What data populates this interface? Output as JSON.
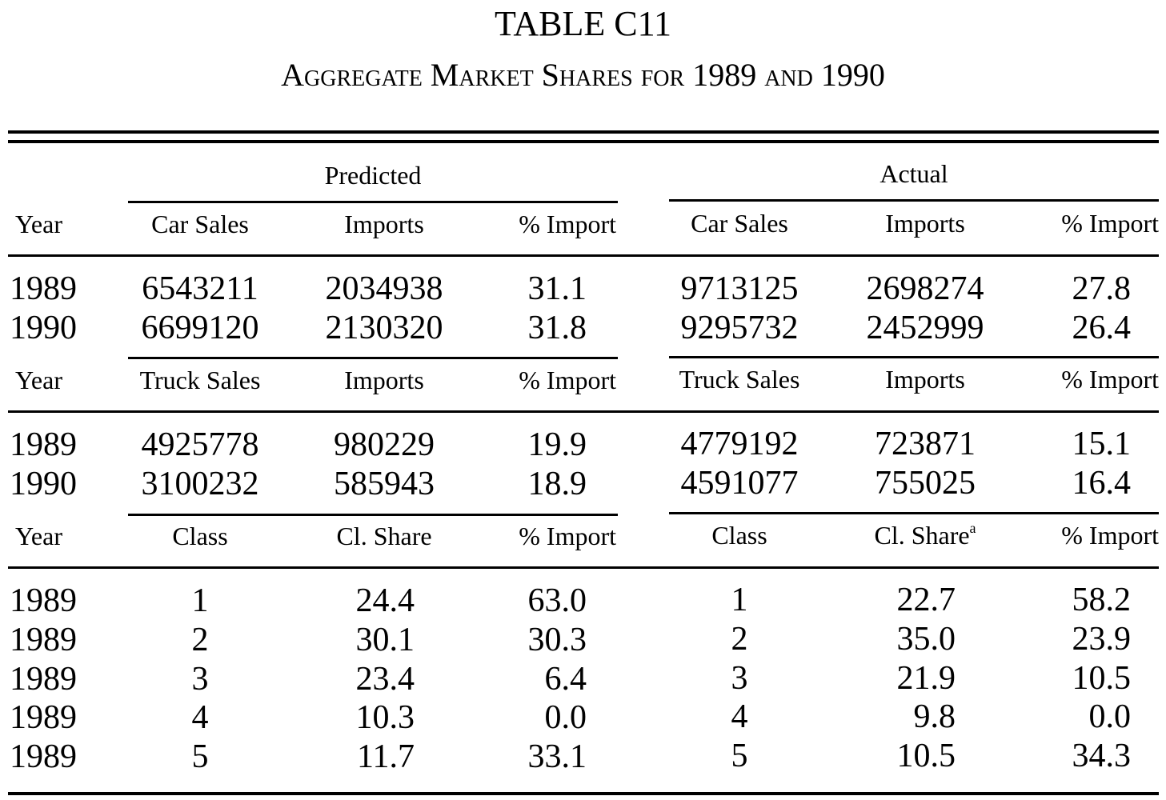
{
  "title": "TABLE C11",
  "subtitle": "Aggregate Market Shares for 1989 and 1990",
  "group_headers": {
    "predicted": "Predicted",
    "actual": "Actual"
  },
  "blocks": [
    {
      "headers": [
        "Year",
        "Car Sales",
        "Imports",
        "% Import",
        "Car Sales",
        "Imports",
        "% Import"
      ],
      "rows": [
        [
          "1989",
          "6543211",
          "2034938",
          "31.1",
          "9713125",
          "2698274",
          "27.8"
        ],
        [
          "1990",
          "6699120",
          "2130320",
          "31.8",
          "9295732",
          "2452999",
          "26.4"
        ]
      ]
    },
    {
      "headers": [
        "Year",
        "Truck Sales",
        "Imports",
        "% Import",
        "Truck Sales",
        "Imports",
        "% Import"
      ],
      "rows": [
        [
          "1989",
          "4925778",
          "980229",
          "19.9",
          "4779192",
          "723871",
          "15.1"
        ],
        [
          "1990",
          "3100232",
          "585943",
          "18.9",
          "4591077",
          "755025",
          "16.4"
        ]
      ]
    },
    {
      "headers": [
        "Year",
        "Class",
        "Cl. Share",
        "% Import",
        "Class",
        "Cl. Share",
        "% Import"
      ],
      "footnote_marker": "a",
      "rows": [
        [
          "1989",
          "1",
          "24.4",
          "63.0",
          "1",
          "22.7",
          "58.2"
        ],
        [
          "1989",
          "2",
          "30.1",
          "30.3",
          "2",
          "35.0",
          "23.9"
        ],
        [
          "1989",
          "3",
          "23.4",
          "6.4",
          "3",
          "21.9",
          "10.5"
        ],
        [
          "1989",
          "4",
          "10.3",
          "0.0",
          "4",
          "9.8",
          "0.0"
        ],
        [
          "1989",
          "5",
          "11.7",
          "33.1",
          "5",
          "10.5",
          "34.3"
        ]
      ]
    }
  ]
}
